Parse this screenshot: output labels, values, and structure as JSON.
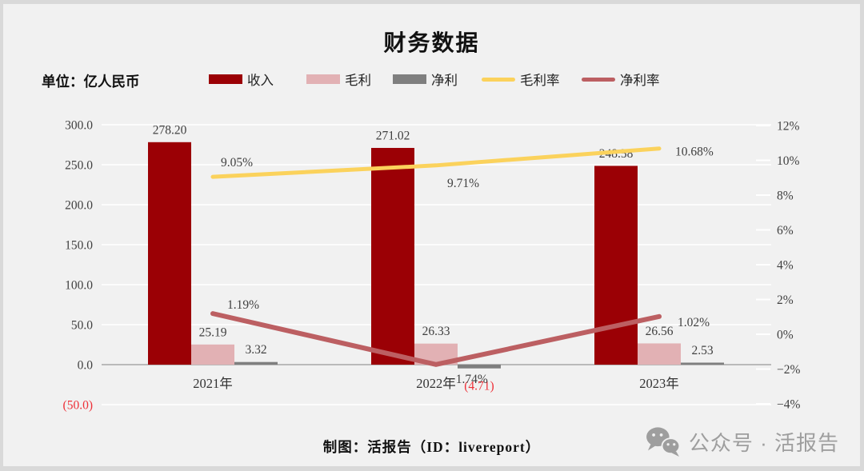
{
  "page": {
    "title": "财务数据",
    "unit_label": "单位：亿人民币",
    "footer_credit": "制图：活报告（ID：livereport）",
    "watermark_text": "公众号 · 活报告",
    "watermark_icon": "wechat-icon"
  },
  "colors": {
    "background": "#f1f1f1",
    "frame_border": "#d9d9d9",
    "gridline": "#ffffff",
    "zero_axis": "#a6a6a6",
    "revenue": "#9b0005",
    "gross_profit": "#e2b1b4",
    "net_profit": "#7f7f7f",
    "gross_margin": "#fbd25c",
    "net_margin": "#bc5f62",
    "label_text": "#3f3f3f",
    "negative_text": "#ee3038",
    "watermark": "#9e9e9e"
  },
  "legend": {
    "items": [
      {
        "label": "收入",
        "type": "bar",
        "color_key": "revenue"
      },
      {
        "label": "毛利",
        "type": "bar",
        "color_key": "gross_profit"
      },
      {
        "label": "净利",
        "type": "bar",
        "color_key": "net_profit"
      },
      {
        "label": "毛利率",
        "type": "line",
        "color_key": "gross_margin"
      },
      {
        "label": "净利率",
        "type": "line",
        "color_key": "net_margin"
      }
    ]
  },
  "chart_data": {
    "type": "bar+line combo, dual axis",
    "title": "财务数据",
    "unit": "亿人民币",
    "categories": [
      "2021年",
      "2022年",
      "2023年"
    ],
    "bar_series": [
      {
        "name": "收入",
        "color_key": "revenue",
        "values": [
          278.2,
          271.02,
          248.58
        ],
        "labels": [
          "278.20",
          "271.02",
          "248.58"
        ]
      },
      {
        "name": "毛利",
        "color_key": "gross_profit",
        "values": [
          25.19,
          26.33,
          26.56
        ],
        "labels": [
          "25.19",
          "26.33",
          "26.56"
        ]
      },
      {
        "name": "净利",
        "color_key": "net_profit",
        "values": [
          3.32,
          -4.71,
          2.53
        ],
        "labels": [
          "3.32",
          "(4.71)",
          "2.53"
        ]
      }
    ],
    "line_series": [
      {
        "name": "毛利率",
        "color_key": "gross_margin",
        "values": [
          9.05,
          9.71,
          10.68
        ],
        "labels": [
          "9.05%",
          "9.71%",
          "10.68%"
        ]
      },
      {
        "name": "净利率",
        "color_key": "net_margin",
        "values": [
          1.19,
          -1.74,
          1.02
        ],
        "labels": [
          "1.19%",
          "−1.74%",
          "1.02%"
        ]
      }
    ],
    "left_axis": {
      "range": [
        -50,
        300
      ],
      "ticks": [
        {
          "label": "300.0",
          "value": 300
        },
        {
          "label": "250.0",
          "value": 250
        },
        {
          "label": "200.0",
          "value": 200
        },
        {
          "label": "150.0",
          "value": 150
        },
        {
          "label": "100.0",
          "value": 100
        },
        {
          "label": "50.0",
          "value": 50
        },
        {
          "label": "0.0",
          "value": 0
        },
        {
          "label": "(50.0)",
          "value": -50,
          "negative": true
        }
      ]
    },
    "right_axis": {
      "range": [
        -4,
        12
      ],
      "ticks": [
        {
          "label": "12%",
          "value": 12
        },
        {
          "label": "10%",
          "value": 10
        },
        {
          "label": "8%",
          "value": 8
        },
        {
          "label": "6%",
          "value": 6
        },
        {
          "label": "4%",
          "value": 4
        },
        {
          "label": "2%",
          "value": 2
        },
        {
          "label": "0%",
          "value": 0
        },
        {
          "label": "−2%",
          "value": -2
        },
        {
          "label": "−4%",
          "value": -4
        }
      ]
    },
    "grid": true,
    "legend_position": "top"
  }
}
